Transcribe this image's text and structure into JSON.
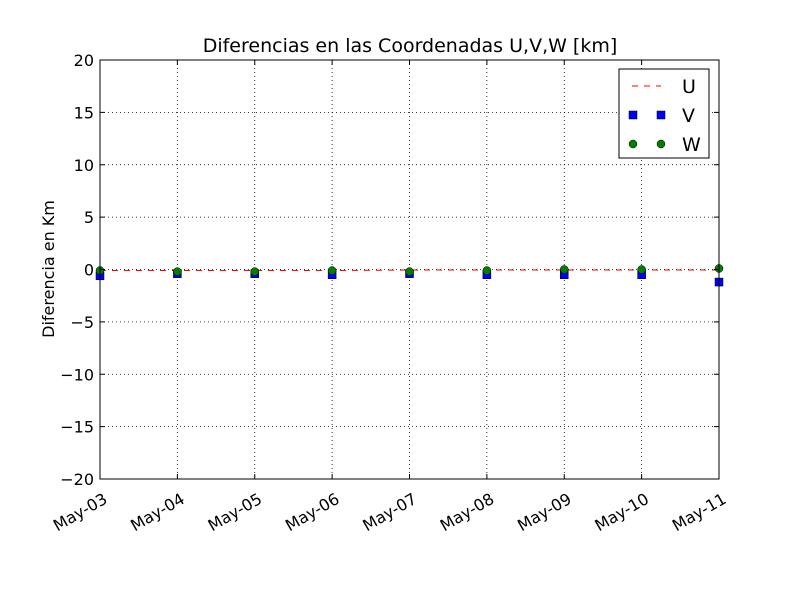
{
  "chart_data": {
    "type": "line",
    "title": "Diferencias en las Coordenadas U,V,W [km]",
    "xlabel": "",
    "ylabel": "Diferencia en Km",
    "categories": [
      "May-03",
      "May-04",
      "May-05",
      "May-06",
      "May-07",
      "May-08",
      "May-09",
      "May-10",
      "May-11"
    ],
    "ylim": [
      -20,
      20
    ],
    "yticks": [
      -20,
      -15,
      -10,
      -5,
      0,
      5,
      10,
      15,
      20
    ],
    "ytick_labels": [
      "−20",
      "−15",
      "−10",
      "−5",
      "0",
      "5",
      "10",
      "15",
      "20"
    ],
    "grid": true,
    "legend_position": "top-right",
    "series": [
      {
        "name": "U",
        "style": "dashed-line",
        "color": "#ff0000",
        "values": [
          -0.1,
          -0.1,
          -0.1,
          -0.1,
          -0.05,
          -0.05,
          -0.05,
          -0.05,
          -0.05
        ]
      },
      {
        "name": "V",
        "style": "square-markers",
        "color": "#0000ff",
        "values": [
          -0.6,
          -0.4,
          -0.4,
          -0.5,
          -0.4,
          -0.5,
          -0.5,
          -0.5,
          -1.2
        ]
      },
      {
        "name": "W",
        "style": "circle-markers",
        "color": "#008000",
        "values": [
          -0.1,
          -0.2,
          -0.2,
          -0.1,
          -0.2,
          -0.1,
          0.0,
          0.0,
          0.1
        ]
      }
    ]
  }
}
